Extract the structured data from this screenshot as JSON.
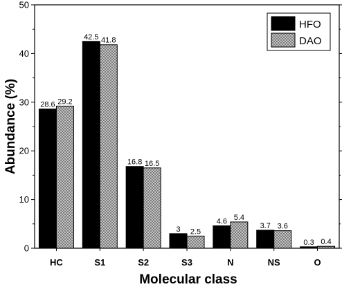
{
  "chart_data": {
    "type": "bar",
    "xlabel": "Molecular class",
    "ylabel": "Abundance (%)",
    "ylim": [
      0,
      50
    ],
    "yticks": [
      0,
      10,
      20,
      30,
      40,
      50
    ],
    "categories": [
      "HC",
      "S1",
      "S2",
      "S3",
      "N",
      "NS",
      "O"
    ],
    "series": [
      {
        "name": "HFO",
        "values": [
          28.6,
          42.5,
          16.8,
          3,
          4.6,
          3.7,
          0.3
        ],
        "labels": [
          "28.6",
          "42.5",
          "16.8",
          "3",
          "4.6",
          "3.7",
          "0.3"
        ],
        "fill": "#000000"
      },
      {
        "name": "DAO",
        "values": [
          29.2,
          41.8,
          16.5,
          2.5,
          5.4,
          3.6,
          0.4
        ],
        "labels": [
          "29.2",
          "41.8",
          "16.5",
          "2.5",
          "5.4",
          "3.6",
          "0.4"
        ],
        "fill": "crosshatch-gray"
      }
    ],
    "legend_position": "top-right",
    "grid": false
  }
}
